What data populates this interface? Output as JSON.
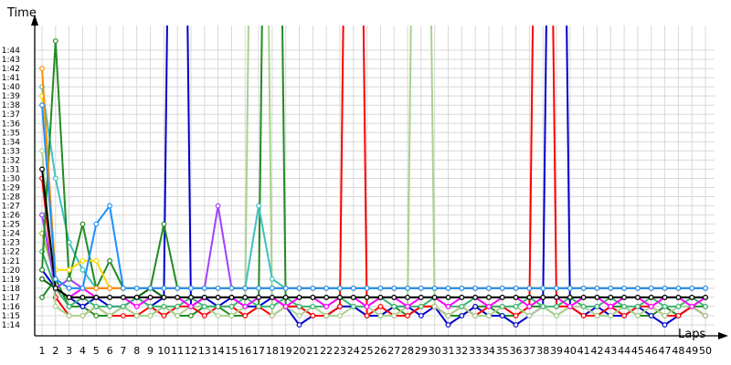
{
  "chart_data": {
    "type": "line",
    "ylabel": "Time",
    "xlabel": "Laps",
    "x_ticks": [
      "1",
      "2",
      "3",
      "4",
      "5",
      "6",
      "7",
      "8",
      "9",
      "10",
      "11",
      "12",
      "13",
      "14",
      "15",
      "16",
      "17",
      "18",
      "19",
      "20",
      "21",
      "22",
      "23",
      "24",
      "25",
      "26",
      "27",
      "28",
      "29",
      "30",
      "31",
      "32",
      "33",
      "34",
      "35",
      "36",
      "37",
      "38",
      "39",
      "40",
      "41",
      "42",
      "43",
      "44",
      "45",
      "46",
      "47",
      "48",
      "49",
      "50"
    ],
    "y_ticks": [
      "1:14",
      "1:15",
      "1:16",
      "1:17",
      "1:18",
      "1:19",
      "1:20",
      "1:21",
      "1:22",
      "1:23",
      "1:24",
      "1:25",
      "1:26",
      "1:27",
      "1:28",
      "1:29",
      "1:30",
      "1:31",
      "1:32",
      "1:33",
      "1:34",
      "1:35",
      "1:36",
      "1:37",
      "1:38",
      "1:39",
      "1:40",
      "1:41",
      "1:42",
      "1:43",
      "1:44"
    ],
    "xlim": [
      1,
      50
    ],
    "ylim_seconds": [
      73,
      105
    ],
    "grid": true,
    "legend": "none",
    "series": [
      {
        "color": "#228b22",
        "values": [
          77,
          79,
          76,
          76,
          75,
          75,
          76,
          75,
          75,
          76,
          75,
          75,
          76,
          76,
          75,
          75,
          76,
          200,
          76,
          76,
          75,
          75,
          76,
          76,
          75,
          75,
          76,
          75,
          76,
          76,
          75,
          75,
          76,
          76,
          75,
          75,
          76,
          76,
          75,
          76,
          75,
          75,
          76,
          76,
          75,
          75,
          76,
          75,
          76,
          76
        ]
      },
      {
        "color": "#0000cd",
        "values": [
          80,
          78,
          77,
          76,
          77,
          76,
          76,
          77,
          76,
          77,
          200,
          76,
          77,
          76,
          77,
          76,
          76,
          77,
          76,
          74,
          75,
          75,
          76,
          76,
          75,
          75,
          76,
          76,
          75,
          76,
          74,
          75,
          76,
          75,
          75,
          74,
          75,
          76,
          200,
          76,
          75,
          76,
          75,
          75,
          76,
          75,
          74,
          75,
          76,
          75
        ]
      },
      {
        "color": "#ff0000",
        "values": [
          90,
          77,
          75,
          75,
          76,
          75,
          75,
          75,
          76,
          75,
          76,
          76,
          75,
          76,
          76,
          75,
          76,
          75,
          76,
          76,
          75,
          75,
          76,
          200,
          75,
          76,
          75,
          75,
          76,
          76,
          75,
          76,
          75,
          76,
          76,
          75,
          76,
          200,
          76,
          76,
          75,
          75,
          76,
          75,
          76,
          76,
          75,
          75,
          76,
          75
        ]
      },
      {
        "color": "#a9d18e",
        "values": [
          93,
          76,
          75,
          75,
          76,
          75,
          76,
          75,
          75,
          76,
          75,
          76,
          76,
          75,
          75,
          76,
          200,
          75,
          76,
          75,
          76,
          75,
          75,
          76,
          76,
          75,
          75,
          76,
          200,
          76,
          75,
          76,
          75,
          75,
          76,
          76,
          75,
          76,
          75,
          76,
          76,
          75,
          75,
          76,
          75,
          76,
          75,
          76,
          76,
          75
        ]
      },
      {
        "color": "#3cb371",
        "values": [
          82,
          78,
          76,
          77,
          76,
          76,
          76,
          77,
          76,
          76,
          76,
          77,
          76,
          76,
          76,
          77,
          76,
          76,
          77,
          76,
          76,
          76,
          77,
          76,
          76,
          77,
          76,
          76,
          76,
          77,
          76,
          76,
          77,
          76,
          76,
          76,
          77,
          76,
          76,
          77,
          76,
          76,
          77,
          76,
          76,
          77,
          76,
          76,
          77,
          76
        ]
      },
      {
        "color": "#ff00ff",
        "values": [
          86,
          78,
          77,
          78,
          77,
          77,
          77,
          76,
          77,
          77,
          77,
          76,
          77,
          77,
          77,
          76,
          77,
          77,
          76,
          77,
          77,
          76,
          77,
          77,
          76,
          77,
          77,
          76,
          77,
          77,
          76,
          77,
          77,
          76,
          77,
          77,
          76,
          77,
          77,
          76,
          77,
          77,
          76,
          77,
          77,
          76,
          77,
          77,
          76,
          77
        ]
      },
      {
        "color": "#006400",
        "values": [
          79,
          78,
          77,
          77,
          77,
          77,
          77,
          77,
          78,
          77,
          77,
          77,
          77,
          77,
          77,
          77,
          77,
          77,
          77,
          77,
          77,
          77,
          77,
          77,
          77,
          77,
          77,
          77,
          77,
          77,
          77,
          77,
          77,
          77,
          77,
          77,
          77,
          77,
          77,
          77,
          77,
          77,
          77,
          77,
          77,
          77,
          77,
          77,
          77,
          77
        ]
      },
      {
        "color": "#9acd32",
        "values": [
          84,
          79,
          78,
          78,
          78,
          78,
          78,
          78,
          78,
          78,
          78,
          78,
          78,
          78,
          78,
          78,
          78,
          78,
          78,
          78,
          78,
          78,
          78,
          78,
          78,
          78,
          78,
          78,
          78,
          78,
          78,
          78,
          78,
          78,
          78,
          78,
          78,
          78,
          78,
          78,
          78,
          78,
          78,
          78,
          78,
          78,
          78,
          78,
          78,
          78
        ]
      },
      {
        "color": "#40c0c0",
        "values": [
          100,
          90,
          83,
          80,
          78,
          78,
          78,
          78,
          78,
          78,
          78,
          78,
          78,
          78,
          78,
          78,
          87,
          79,
          78,
          78,
          78,
          78,
          78,
          78,
          78,
          78,
          78,
          78,
          78,
          78,
          78,
          78,
          78,
          78,
          78,
          78,
          78,
          78,
          78,
          78,
          78,
          78,
          78,
          78,
          78,
          78,
          78,
          78,
          78,
          78
        ]
      },
      {
        "color": "#9f40ff",
        "values": [
          86,
          78,
          79,
          78,
          78,
          78,
          78,
          78,
          78,
          78,
          78,
          78,
          78,
          87,
          78,
          78,
          78,
          78,
          78,
          78,
          78,
          78,
          78,
          78,
          78,
          78,
          78,
          78,
          78,
          78,
          78,
          78,
          78,
          78,
          78,
          78,
          78,
          78,
          78,
          78,
          78,
          78,
          78,
          78,
          78,
          78,
          78,
          78,
          78,
          78
        ]
      },
      {
        "color": "#228b22",
        "values": [
          80,
          105,
          79,
          85,
          78,
          81,
          78,
          78,
          78,
          85,
          78,
          78,
          78,
          78,
          78,
          78,
          78,
          78,
          78,
          78,
          78,
          78,
          78,
          78,
          78,
          78,
          78,
          78,
          78,
          78,
          78,
          78,
          78,
          78,
          78,
          78,
          78,
          78,
          78,
          78,
          78,
          78,
          78,
          78,
          78,
          78,
          78,
          78,
          78,
          78
        ]
      },
      {
        "color": "#ffd700",
        "values": [
          99,
          80,
          80,
          81,
          81,
          78,
          78,
          78,
          78,
          78,
          78,
          78,
          78,
          78,
          78,
          78,
          78,
          78,
          78,
          78,
          78,
          78,
          78,
          78,
          78,
          78,
          78,
          78,
          78,
          78,
          78,
          78,
          78,
          78,
          78,
          78,
          78,
          78,
          78,
          78,
          78,
          78,
          78,
          78,
          78,
          78,
          78,
          78,
          78,
          78
        ]
      },
      {
        "color": "#ff8c00",
        "values": [
          102,
          79,
          78,
          78,
          78,
          78,
          78,
          78,
          78,
          78,
          78,
          78,
          78,
          78,
          78,
          78,
          78,
          78,
          78,
          78,
          78,
          78,
          78,
          78,
          78,
          78,
          78,
          78,
          78,
          78,
          78,
          78,
          78,
          78,
          78,
          78,
          78,
          78,
          78,
          78,
          78,
          78,
          78,
          78,
          78,
          78,
          78,
          78,
          78,
          78
        ]
      },
      {
        "color": "#000000",
        "values": [
          91,
          78,
          77,
          77,
          77,
          77,
          77,
          77,
          77,
          77,
          77,
          77,
          77,
          77,
          77,
          77,
          77,
          77,
          77,
          77,
          77,
          77,
          77,
          77,
          77,
          77,
          77,
          77,
          77,
          77,
          77,
          77,
          77,
          77,
          77,
          77,
          77,
          77,
          77,
          77,
          77,
          77,
          77,
          77,
          77,
          77,
          77,
          77,
          77,
          77
        ]
      },
      {
        "color": "#1e90ff",
        "values": [
          98,
          79,
          78,
          78,
          85,
          87,
          78,
          78,
          78,
          78,
          78,
          78,
          78,
          78,
          78,
          78,
          78,
          78,
          78,
          78,
          78,
          78,
          78,
          78,
          78,
          78,
          78,
          78,
          78,
          78,
          78,
          78,
          78,
          78,
          78,
          78,
          78,
          78,
          78,
          78,
          78,
          78,
          78,
          78,
          78,
          78,
          78,
          78,
          78,
          78
        ]
      }
    ]
  }
}
